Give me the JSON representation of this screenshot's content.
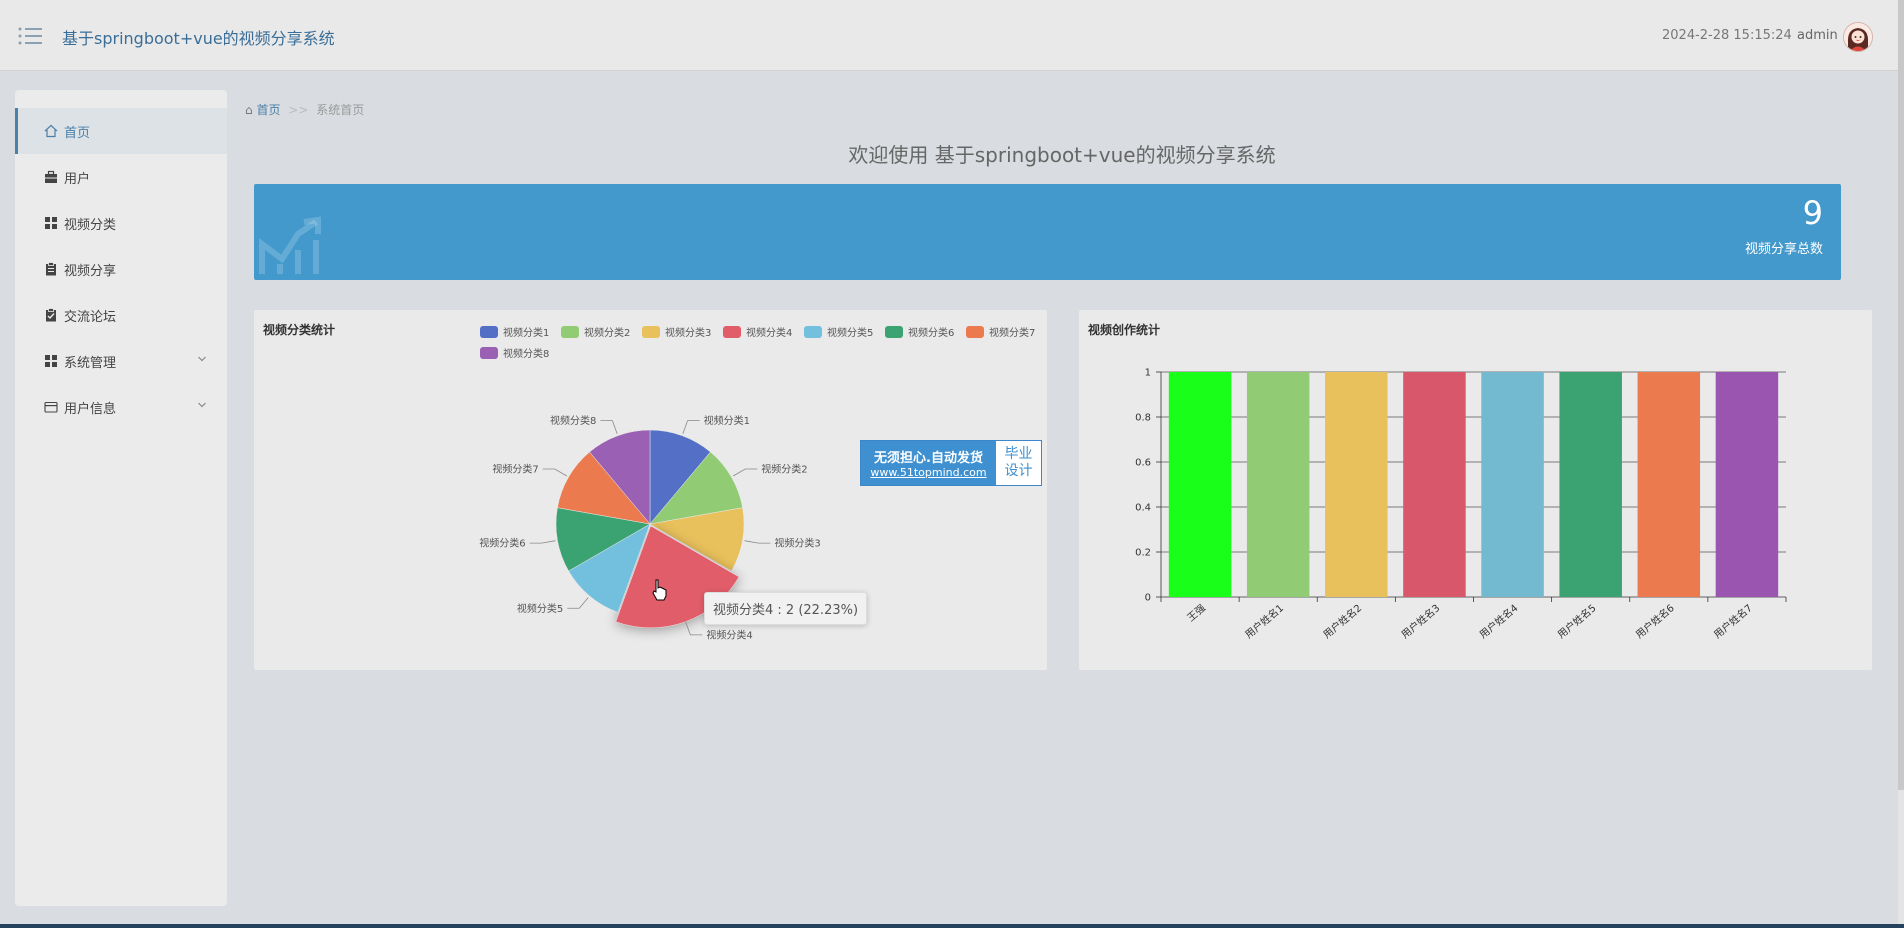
{
  "header": {
    "title": "基于springboot+vue的视频分享系统",
    "datetime": "2024-2-28 15:15:24",
    "username": "admin"
  },
  "sidebar": {
    "items": [
      {
        "label": "首页",
        "icon": "home-icon",
        "active": true
      },
      {
        "label": "用户",
        "icon": "briefcase-icon"
      },
      {
        "label": "视频分类",
        "icon": "grid-icon"
      },
      {
        "label": "视频分享",
        "icon": "clipboard-icon"
      },
      {
        "label": "交流论坛",
        "icon": "clipboard-check-icon"
      },
      {
        "label": "系统管理",
        "icon": "grid-icon",
        "expandable": true
      },
      {
        "label": "用户信息",
        "icon": "card-icon",
        "expandable": true
      }
    ]
  },
  "breadcrumb": {
    "home": "首页",
    "separator": ">>",
    "current": "系统首页"
  },
  "welcome": "欢迎使用 基于springboot+vue的视频分享系统",
  "stat": {
    "value": "9",
    "label": "视频分享总数",
    "color": "#4399cc"
  },
  "pie_card": {
    "title": "视频分类统计"
  },
  "bar_card": {
    "title": "视频创作统计"
  },
  "tooltip": "视频分类4 : 2 (22.23%)",
  "ad": {
    "line1": "无须担心.自动发货",
    "line2": "www.51topmind.com",
    "right1": "毕业",
    "right2": "设计"
  },
  "chart_data": [
    {
      "type": "pie",
      "title": "视频分类统计",
      "legend_position": "top-right",
      "categories": [
        "视频分类1",
        "视频分类2",
        "视频分类3",
        "视频分类4",
        "视频分类5",
        "视频分类6",
        "视频分类7",
        "视频分类8"
      ],
      "values": [
        1,
        1,
        1,
        2,
        1,
        1,
        1,
        1
      ],
      "colors": [
        "#5470c6",
        "#91cc75",
        "#e8c15c",
        "#e15d6a",
        "#73c0de",
        "#3ba272",
        "#ec7a4f",
        "#9a60b4"
      ],
      "highlighted": "视频分类4"
    },
    {
      "type": "bar",
      "title": "视频创作统计",
      "categories": [
        "王强",
        "用户姓名1",
        "用户姓名2",
        "用户姓名3",
        "用户姓名4",
        "用户姓名5",
        "用户姓名6",
        "用户姓名7"
      ],
      "values": [
        1,
        1,
        1,
        1,
        1,
        1,
        1,
        1
      ],
      "colors": [
        "#1aff1a",
        "#91cc75",
        "#e8c15c",
        "#d9576a",
        "#73b9cf",
        "#3ba272",
        "#ec7a4f",
        "#9a55b0"
      ],
      "ylim": [
        0,
        1
      ],
      "yticks": [
        "0",
        "0.2",
        "0.4",
        "0.6",
        "0.8",
        "1"
      ],
      "grid": true
    }
  ]
}
